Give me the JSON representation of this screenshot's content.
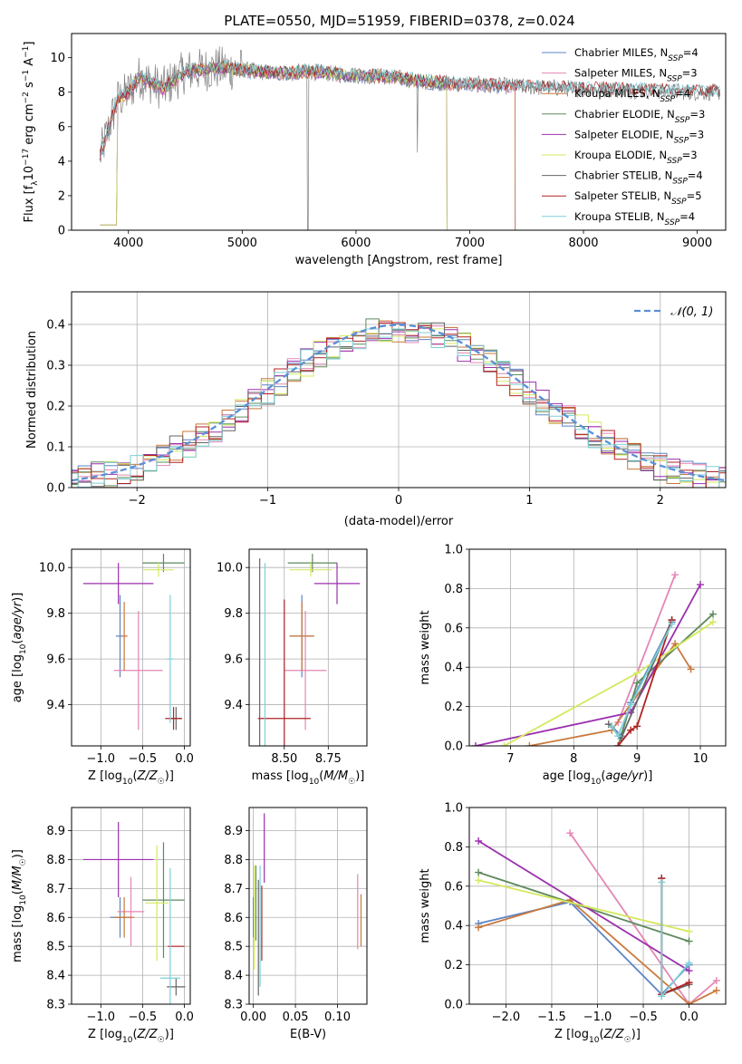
{
  "title": "PLATE=0550, MJD=51959, FIBERID=0378, z=0.024",
  "colors": {
    "Chabrier MILES": "#5b84c4",
    "Salpeter MILES": "#e486b5",
    "Kroupa MILES": "#c9793d",
    "Chabrier ELODIE": "#5d8a5d",
    "Salpeter ELODIE": "#9b2fae",
    "Kroupa ELODIE": "#d4e95e",
    "Chabrier STELIB": "#666666",
    "Salpeter STELIB": "#b22222",
    "Kroupa STELIB": "#7ecfd8"
  },
  "chart_data": [
    {
      "id": "spectrum",
      "type": "line",
      "xlabel": "wavelength [Angstrom, rest frame]",
      "ylabel": "Flux [f_λ10^-17 erg cm^-2 s^-1 A^-1]",
      "xlim": [
        3500,
        9250
      ],
      "ylim": [
        0,
        11.4
      ],
      "xticks": [
        4000,
        5000,
        6000,
        7000,
        8000,
        9000
      ],
      "yticks": [
        0,
        2,
        4,
        6,
        8,
        10
      ],
      "grid": false,
      "legend_position": "top-right",
      "legend": [
        {
          "base": "Chabrier MILES, N",
          "sub": "SSP",
          "tail": "=4"
        },
        {
          "base": "Salpeter MILES, N",
          "sub": "SSP",
          "tail": "=3"
        },
        {
          "base": "Kroupa MILES, N",
          "sub": "SSP",
          "tail": "=4"
        },
        {
          "base": "Chabrier ELODIE, N",
          "sub": "SSP",
          "tail": "=3"
        },
        {
          "base": "Salpeter ELODIE, N",
          "sub": "SSP",
          "tail": "=3"
        },
        {
          "base": "Kroupa ELODIE, N",
          "sub": "SSP",
          "tail": "=3"
        },
        {
          "base": "Chabrier STELIB, N",
          "sub": "SSP",
          "tail": "=4"
        },
        {
          "base": "Salpeter STELIB, N",
          "sub": "SSP",
          "tail": "=5"
        },
        {
          "base": "Kroupa STELIB, N",
          "sub": "SSP",
          "tail": "=4"
        }
      ],
      "data_envelope": {
        "wavelength": [
          3750,
          3900,
          4000,
          4100,
          4300,
          4500,
          4800,
          5000,
          5300,
          5600,
          5900,
          6300,
          6600,
          6900,
          7200,
          7500,
          8000,
          8500,
          9000,
          9200
        ],
        "flux": [
          4.3,
          7.5,
          8.0,
          8.9,
          8.2,
          9.2,
          9.4,
          9.3,
          9.1,
          9.2,
          9.0,
          8.9,
          8.6,
          8.5,
          8.4,
          8.3,
          8.2,
          8.1,
          8.0,
          8.0
        ]
      },
      "model_end_wavelength": {
        "Chabrier MILES": 7400,
        "Salpeter MILES": 7400,
        "Kroupa MILES": 7400,
        "Chabrier ELODIE": 6800,
        "Salpeter ELODIE": 6800,
        "Kroupa ELODIE": 6800,
        "Chabrier STELIB": 9250,
        "Salpeter STELIB": 9250,
        "Kroupa STELIB": 9250
      }
    },
    {
      "id": "residuals",
      "type": "line",
      "xlabel": "(data-model)/error",
      "ylabel": "Normed distribution",
      "xlim": [
        -2.5,
        2.5
      ],
      "ylim": [
        0,
        0.48
      ],
      "xticks": [
        -2,
        -1,
        0,
        1,
        2
      ],
      "yticks": [
        0.0,
        0.1,
        0.2,
        0.3,
        0.4
      ],
      "grid": true,
      "legend_position": "top-right",
      "legend": "𝒩(0, 1)",
      "reference": {
        "name": "𝒩(0, 1)",
        "mean": 0,
        "sigma": 1
      }
    },
    {
      "id": "age_vs_Z",
      "type": "scatter",
      "xlabel": "Z [log10(Z/Z☉)]",
      "ylabel": "age [log10(age/yr)]",
      "xlim": [
        -1.35,
        0.07
      ],
      "ylim": [
        9.22,
        10.08
      ],
      "xticks": [
        -1.0,
        -0.5,
        0.0
      ],
      "yticks": [
        9.4,
        9.6,
        9.8,
        10.0
      ],
      "grid": true,
      "points": [
        {
          "model": "Chabrier MILES",
          "x": -0.77,
          "xerr": 0.05,
          "y": 9.7,
          "yerr": 0.18
        },
        {
          "model": "Salpeter MILES",
          "x": -0.55,
          "xerr": 0.29,
          "y": 9.55,
          "yerr": 0.26
        },
        {
          "model": "Kroupa MILES",
          "x": -0.72,
          "xerr": 0.04,
          "y": 9.7,
          "yerr": 0.15
        },
        {
          "model": "Chabrier ELODIE",
          "x": -0.25,
          "xerr": 0.25,
          "y": 10.02,
          "yerr": 0.04
        },
        {
          "model": "Salpeter ELODIE",
          "x": -0.79,
          "xerr": 0.42,
          "y": 9.93,
          "yerr": 0.09
        },
        {
          "model": "Kroupa ELODIE",
          "x": -0.31,
          "xerr": 0.18,
          "y": 9.99,
          "yerr": 0.03
        },
        {
          "model": "Chabrier STELIB",
          "x": -0.1,
          "xerr": 0.07,
          "y": 9.34,
          "yerr": 0.05
        },
        {
          "model": "Salpeter STELIB",
          "x": -0.13,
          "xerr": 0.1,
          "y": 9.34,
          "yerr": 0.05
        },
        {
          "model": "Kroupa STELIB",
          "x": -0.17,
          "xerr": 0.04,
          "y": 9.6,
          "yerr": 0.28
        }
      ]
    },
    {
      "id": "age_vs_mass",
      "type": "scatter",
      "xlabel": "mass [log10(M/M☉)]",
      "ylabel": "",
      "xlim": [
        8.3,
        8.97
      ],
      "ylim": [
        9.22,
        10.08
      ],
      "xticks": [
        8.5,
        8.75
      ],
      "yticks": [
        9.4,
        9.6,
        9.8,
        10.0
      ],
      "grid": true,
      "points": [
        {
          "model": "Chabrier MILES",
          "x": 8.6,
          "xerr": 0.07,
          "y": 9.7,
          "yerr": 0.18
        },
        {
          "model": "Salpeter MILES",
          "x": 8.62,
          "xerr": 0.12,
          "y": 9.55,
          "yerr": 0.26
        },
        {
          "model": "Kroupa MILES",
          "x": 8.6,
          "xerr": 0.07,
          "y": 9.7,
          "yerr": 0.15
        },
        {
          "model": "Chabrier ELODIE",
          "x": 8.66,
          "xerr": 0.14,
          "y": 10.02,
          "yerr": 0.04
        },
        {
          "model": "Salpeter ELODIE",
          "x": 8.8,
          "xerr": 0.13,
          "y": 9.93,
          "yerr": 0.09
        },
        {
          "model": "Kroupa ELODIE",
          "x": 8.65,
          "xerr": 0.12,
          "y": 9.99,
          "yerr": 0.03
        },
        {
          "model": "Chabrier STELIB",
          "x": 8.36,
          "xerr": 0.0,
          "y": 9.34,
          "yerr": 0.7
        },
        {
          "model": "Salpeter STELIB",
          "x": 8.5,
          "xerr": 0.15,
          "y": 9.34,
          "yerr": 0.52
        },
        {
          "model": "Kroupa STELIB",
          "x": 8.39,
          "xerr": 0.0,
          "y": 9.6,
          "yerr": 0.42
        }
      ]
    },
    {
      "id": "mass_weight_vs_age",
      "type": "line",
      "xlabel": "age [log10(age/yr)]",
      "ylabel": "mass weight",
      "xlim": [
        6.35,
        10.4
      ],
      "ylim": [
        0.0,
        1.0
      ],
      "xticks": [
        7,
        8,
        9,
        10
      ],
      "yticks": [
        0.0,
        0.2,
        0.4,
        0.6,
        0.8,
        1.0
      ],
      "grid": true,
      "series": [
        {
          "model": "Chabrier MILES",
          "x": [
            8.6,
            8.75,
            8.9,
            9.55
          ],
          "y": [
            0.1,
            0.05,
            0.22,
            0.63
          ]
        },
        {
          "model": "Salpeter MILES",
          "x": [
            8.7,
            9.6
          ],
          "y": [
            0.12,
            0.87
          ]
        },
        {
          "model": "Kroupa MILES",
          "x": [
            7.3,
            8.6,
            9.6,
            9.85
          ],
          "y": [
            0.0,
            0.08,
            0.52,
            0.39
          ]
        },
        {
          "model": "Chabrier ELODIE",
          "x": [
            8.7,
            9.0,
            10.2
          ],
          "y": [
            0.0,
            0.32,
            0.67
          ]
        },
        {
          "model": "Salpeter ELODIE",
          "x": [
            6.45,
            8.9,
            10.0
          ],
          "y": [
            0.0,
            0.17,
            0.82
          ]
        },
        {
          "model": "Kroupa ELODIE",
          "x": [
            6.9,
            9.0,
            10.2
          ],
          "y": [
            0.0,
            0.37,
            0.63
          ]
        },
        {
          "model": "Chabrier STELIB",
          "x": [
            8.55,
            8.75,
            9.55
          ],
          "y": [
            0.11,
            0.04,
            0.64
          ]
        },
        {
          "model": "Salpeter STELIB",
          "x": [
            8.7,
            8.9,
            9.0,
            9.55
          ],
          "y": [
            0.0,
            0.08,
            0.1,
            0.64
          ]
        },
        {
          "model": "Kroupa STELIB",
          "x": [
            8.6,
            8.7,
            8.9,
            9.55
          ],
          "y": [
            0.1,
            0.05,
            0.21,
            0.62
          ]
        }
      ]
    },
    {
      "id": "mass_vs_Z",
      "type": "scatter",
      "xlabel": "Z [log10(Z/Z☉)]",
      "ylabel": "mass [log10(M/M☉)]",
      "xlim": [
        -1.35,
        0.07
      ],
      "ylim": [
        8.3,
        8.98
      ],
      "xticks": [
        -1.0,
        -0.5,
        0.0
      ],
      "yticks": [
        8.3,
        8.4,
        8.5,
        8.6,
        8.7,
        8.8,
        8.9
      ],
      "grid": true,
      "points": [
        {
          "model": "Chabrier MILES",
          "x": -0.77,
          "xerr": 0.12,
          "y": 8.6,
          "yerr": 0.07
        },
        {
          "model": "Salpeter MILES",
          "x": -0.64,
          "xerr": 0.16,
          "y": 8.62,
          "yerr": 0.12
        },
        {
          "model": "Kroupa MILES",
          "x": -0.72,
          "xerr": 0.12,
          "y": 8.6,
          "yerr": 0.07
        },
        {
          "model": "Chabrier ELODIE",
          "x": -0.25,
          "xerr": 0.25,
          "y": 8.66,
          "yerr": 0.2
        },
        {
          "model": "Salpeter ELODIE",
          "x": -0.79,
          "xerr": 0.42,
          "y": 8.8,
          "yerr": 0.13
        },
        {
          "model": "Kroupa ELODIE",
          "x": -0.33,
          "xerr": 0.14,
          "y": 8.65,
          "yerr": 0.2
        },
        {
          "model": "Chabrier STELIB",
          "x": -0.1,
          "xerr": 0.11,
          "y": 8.36,
          "yerr": 0.03
        },
        {
          "model": "Salpeter STELIB",
          "x": -0.1,
          "xerr": 0.1,
          "y": 8.5,
          "yerr": 0.0
        },
        {
          "model": "Kroupa STELIB",
          "x": -0.17,
          "xerr": 0.12,
          "y": 8.39,
          "yerr": 0.38
        }
      ]
    },
    {
      "id": "mass_vs_ebv",
      "type": "scatter",
      "xlabel": "E(B-V)",
      "ylabel": "",
      "xlim": [
        -0.005,
        0.135
      ],
      "ylim": [
        8.3,
        8.98
      ],
      "xticks": [
        0.0,
        0.05,
        0.1
      ],
      "yticks": [
        8.3,
        8.4,
        8.5,
        8.6,
        8.7,
        8.8,
        8.9
      ],
      "grid": true,
      "points": [
        {
          "model": "Chabrier MILES",
          "x": 0.0,
          "y": 8.6,
          "yerr": 0.07
        },
        {
          "model": "Salpeter MILES",
          "x": 0.124,
          "y": 8.62,
          "yerr": 0.13
        },
        {
          "model": "Kroupa MILES",
          "x": 0.128,
          "y": 8.59,
          "yerr": 0.09
        },
        {
          "model": "Chabrier ELODIE",
          "x": 0.003,
          "y": 8.65,
          "yerr": 0.13
        },
        {
          "model": "Salpeter ELODIE",
          "x": 0.013,
          "y": 8.84,
          "yerr": 0.12
        },
        {
          "model": "Kroupa ELODIE",
          "x": 0.001,
          "y": 8.6,
          "yerr": 0.18
        },
        {
          "model": "Chabrier STELIB",
          "x": 0.006,
          "y": 8.53,
          "yerr": 0.2
        },
        {
          "model": "Salpeter STELIB",
          "x": 0.01,
          "y": 8.58,
          "yerr": 0.13
        },
        {
          "model": "Kroupa STELIB",
          "x": 0.008,
          "y": 8.57,
          "yerr": 0.21
        }
      ]
    },
    {
      "id": "mass_weight_vs_Z",
      "type": "line",
      "xlabel": "Z [log10(Z/Z☉)]",
      "ylabel": "mass weight",
      "xlim": [
        -2.4,
        0.4
      ],
      "ylim": [
        0.0,
        1.0
      ],
      "xticks": [
        -2.0,
        -1.5,
        -1.0,
        -0.5,
        0.0
      ],
      "yticks": [
        0.0,
        0.2,
        0.4,
        0.6,
        0.8,
        1.0
      ],
      "grid": true,
      "series": [
        {
          "model": "Chabrier MILES",
          "x": [
            -2.3,
            -1.3,
            -0.3,
            0.0
          ],
          "y": [
            0.41,
            0.52,
            0.05,
            0.2
          ]
        },
        {
          "model": "Salpeter MILES",
          "x": [
            -1.3,
            0.0,
            0.3
          ],
          "y": [
            0.87,
            0.0,
            0.12
          ]
        },
        {
          "model": "Kroupa MILES",
          "x": [
            -2.3,
            -1.3,
            0.0,
            0.3
          ],
          "y": [
            0.39,
            0.53,
            0.0,
            0.07
          ]
        },
        {
          "model": "Chabrier ELODIE",
          "x": [
            -2.3,
            0.0
          ],
          "y": [
            0.67,
            0.32
          ]
        },
        {
          "model": "Salpeter ELODIE",
          "x": [
            -2.3,
            0.0
          ],
          "y": [
            0.83,
            0.17
          ]
        },
        {
          "model": "Kroupa ELODIE",
          "x": [
            -2.3,
            0.0
          ],
          "y": [
            0.63,
            0.37
          ]
        },
        {
          "model": "Chabrier STELIB",
          "x": [
            -0.3,
            -0.3,
            0.0
          ],
          "y": [
            0.64,
            0.05,
            0.1
          ]
        },
        {
          "model": "Salpeter STELIB",
          "x": [
            -0.3,
            -0.3,
            0.0
          ],
          "y": [
            0.64,
            0.05,
            0.11
          ]
        },
        {
          "model": "Kroupa STELIB",
          "x": [
            -0.3,
            -0.3,
            0.0
          ],
          "y": [
            0.62,
            0.04,
            0.21
          ]
        }
      ]
    }
  ]
}
